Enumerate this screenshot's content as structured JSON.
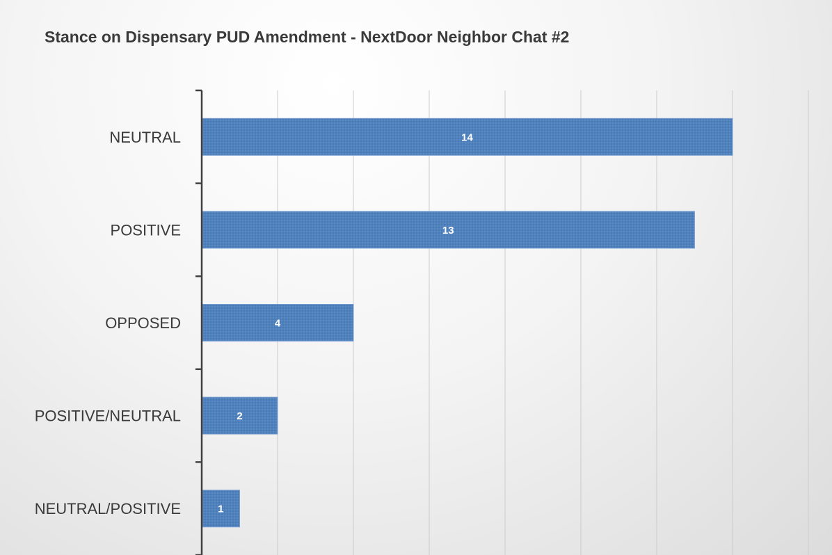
{
  "chart_data": {
    "type": "bar",
    "orientation": "horizontal",
    "title": "Stance on Dispensary PUD Amendment - NextDoor Neighbor Chat #2",
    "categories": [
      "NEUTRAL",
      "POSITIVE",
      "OPPOSED",
      "POSITIVE/NEUTRAL",
      "NEUTRAL/POSITIVE"
    ],
    "values": [
      14,
      13,
      4,
      2,
      1
    ],
    "data_labels": [
      "14",
      "13",
      "4",
      "2",
      "1"
    ],
    "xlim": [
      0,
      16
    ],
    "grid": true,
    "legend": "none",
    "bar_color": "#4f81bd",
    "gridline_color": "#cccccc",
    "axis_color": "#404040"
  }
}
